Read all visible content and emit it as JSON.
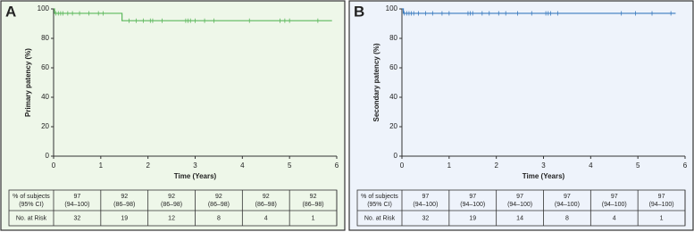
{
  "chart_data": [
    {
      "type": "line",
      "panel": "A",
      "ylabel": "Primary patency (%)",
      "xlabel": "Time (Years)",
      "xlim": [
        0,
        6
      ],
      "ylim": [
        0,
        100
      ],
      "xticks": [
        0,
        1,
        2,
        3,
        4,
        5,
        6
      ],
      "yticks": [
        0,
        20,
        40,
        60,
        80,
        100
      ],
      "background": "#eef7e9",
      "series": [
        {
          "color": "#5cb85c",
          "x": [
            0,
            0.02,
            0.02,
            1.45,
            1.45,
            5.9
          ],
          "values": [
            100,
            100,
            97,
            97,
            92,
            92
          ]
        }
      ],
      "censored": {
        "x": [
          0.05,
          0.1,
          0.15,
          0.2,
          0.3,
          0.4,
          0.55,
          0.75,
          0.95,
          1.05,
          1.6,
          1.75,
          1.9,
          2.05,
          2.1,
          2.3,
          2.8,
          2.85,
          2.9,
          3.0,
          3.2,
          3.4,
          4.15,
          4.8,
          4.9,
          5.0,
          5.6
        ],
        "values": [
          97,
          97,
          97,
          97,
          97,
          97,
          97,
          97,
          97,
          97,
          92,
          92,
          92,
          92,
          92,
          92,
          92,
          92,
          92,
          92,
          92,
          92,
          92,
          92,
          92,
          92,
          92
        ]
      },
      "table": {
        "row_labels": [
          [
            "% of subjects",
            "(95% CI)"
          ],
          "No. at Risk"
        ],
        "percent": [
          97,
          92,
          92,
          92,
          92,
          92
        ],
        "ci": [
          "(94–100)",
          "(86–98)",
          "(86–98)",
          "(86–98)",
          "(86–98)",
          "(86–98)"
        ],
        "at_risk": [
          32,
          19,
          12,
          8,
          4,
          1
        ]
      }
    },
    {
      "type": "line",
      "panel": "B",
      "ylabel": "Secondary patency (%)",
      "xlabel": "Time (Years)",
      "xlim": [
        0,
        6
      ],
      "ylim": [
        0,
        100
      ],
      "xticks": [
        0,
        1,
        2,
        3,
        4,
        5,
        6
      ],
      "yticks": [
        0,
        20,
        40,
        60,
        80,
        100
      ],
      "background": "#eef3fb",
      "series": [
        {
          "color": "#3a7bbf",
          "x": [
            0,
            0.03,
            0.03,
            5.8
          ],
          "values": [
            100,
            100,
            97,
            97
          ]
        }
      ],
      "censored": {
        "x": [
          0.05,
          0.1,
          0.15,
          0.2,
          0.25,
          0.35,
          0.5,
          0.65,
          0.85,
          1.0,
          1.4,
          1.45,
          1.5,
          1.7,
          1.85,
          2.05,
          2.2,
          2.45,
          2.75,
          3.05,
          3.1,
          3.15,
          3.3,
          4.65,
          4.95,
          5.3,
          5.7
        ],
        "values": [
          97,
          97,
          97,
          97,
          97,
          97,
          97,
          97,
          97,
          97,
          97,
          97,
          97,
          97,
          97,
          97,
          97,
          97,
          97,
          97,
          97,
          97,
          97,
          97,
          97,
          97,
          97
        ]
      },
      "table": {
        "row_labels": [
          [
            "% of subjects",
            "(95% CI)"
          ],
          "No. at Risk"
        ],
        "percent": [
          97,
          97,
          97,
          97,
          97,
          97
        ],
        "ci": [
          "(94–100)",
          "(94–100)",
          "(94–100)",
          "(94–100)",
          "(94–100)",
          "(94–100)"
        ],
        "at_risk": [
          32,
          19,
          14,
          8,
          4,
          1
        ]
      }
    }
  ]
}
